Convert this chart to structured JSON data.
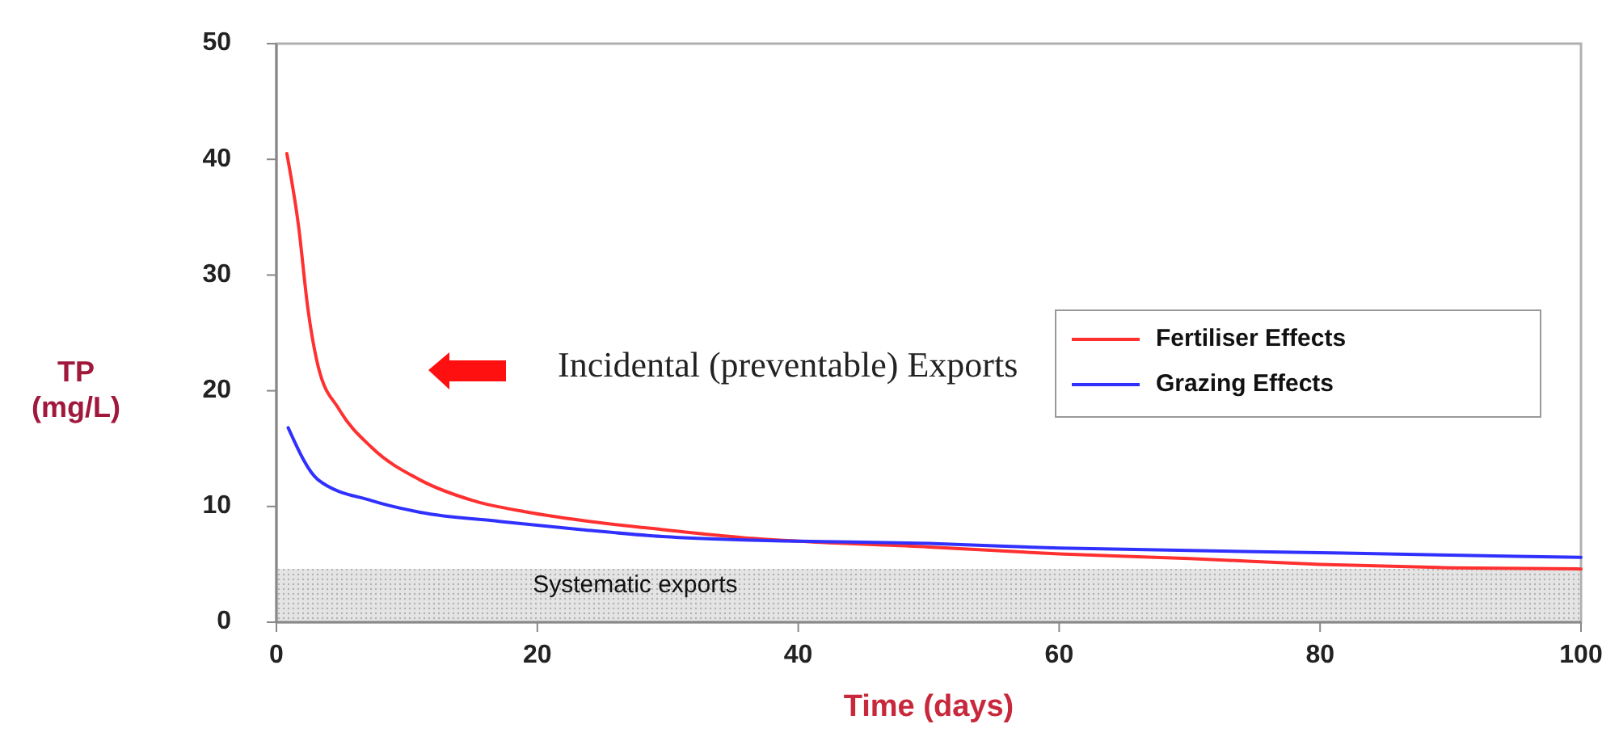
{
  "chart_data": {
    "type": "line",
    "xlabel": "Time (days)",
    "ylabel": "TP\n(mg/L)",
    "xlim": [
      0,
      100
    ],
    "xticks": [
      0,
      20,
      40,
      60,
      80,
      100
    ],
    "ylim": [
      0,
      50
    ],
    "yticks": [
      0,
      10,
      20,
      30,
      40,
      50
    ],
    "grid": false,
    "legend": "right",
    "marker": "none",
    "line_style": "solid",
    "series": [
      {
        "name": "Fertiliser Effects",
        "color": "#ff3030",
        "x": [
          0.8,
          1.7,
          2.4,
          3.2,
          4.8,
          7.3,
          11,
          15.1,
          19.3,
          23.4,
          29.6,
          35.8,
          40,
          50,
          60,
          70,
          80,
          90,
          100
        ],
        "values": [
          40.5,
          34.2,
          27.2,
          22.1,
          18.4,
          15.1,
          12.3,
          10.5,
          9.5,
          8.8,
          8,
          7.3,
          7,
          6.5,
          5.9,
          5.5,
          5,
          4.7,
          4.6
        ]
      },
      {
        "name": "Grazing Effects",
        "color": "#3030ff",
        "x": [
          0.9,
          3.2,
          7.3,
          11,
          17.2,
          23.4,
          29.6,
          35.8,
          40,
          50,
          60,
          70,
          80,
          90,
          100
        ],
        "values": [
          16.8,
          12.3,
          10.5,
          9.5,
          8.7,
          8,
          7.4,
          7.1,
          7,
          6.8,
          6.4,
          6.2,
          6,
          5.8,
          5.6
        ]
      }
    ],
    "bands": [
      {
        "axis": "y",
        "from": 0,
        "to": 4.6,
        "label": "Systematic exports",
        "color": "#e4e4e4"
      }
    ],
    "annotations": [
      "Incidental (preventable) Exports"
    ]
  }
}
